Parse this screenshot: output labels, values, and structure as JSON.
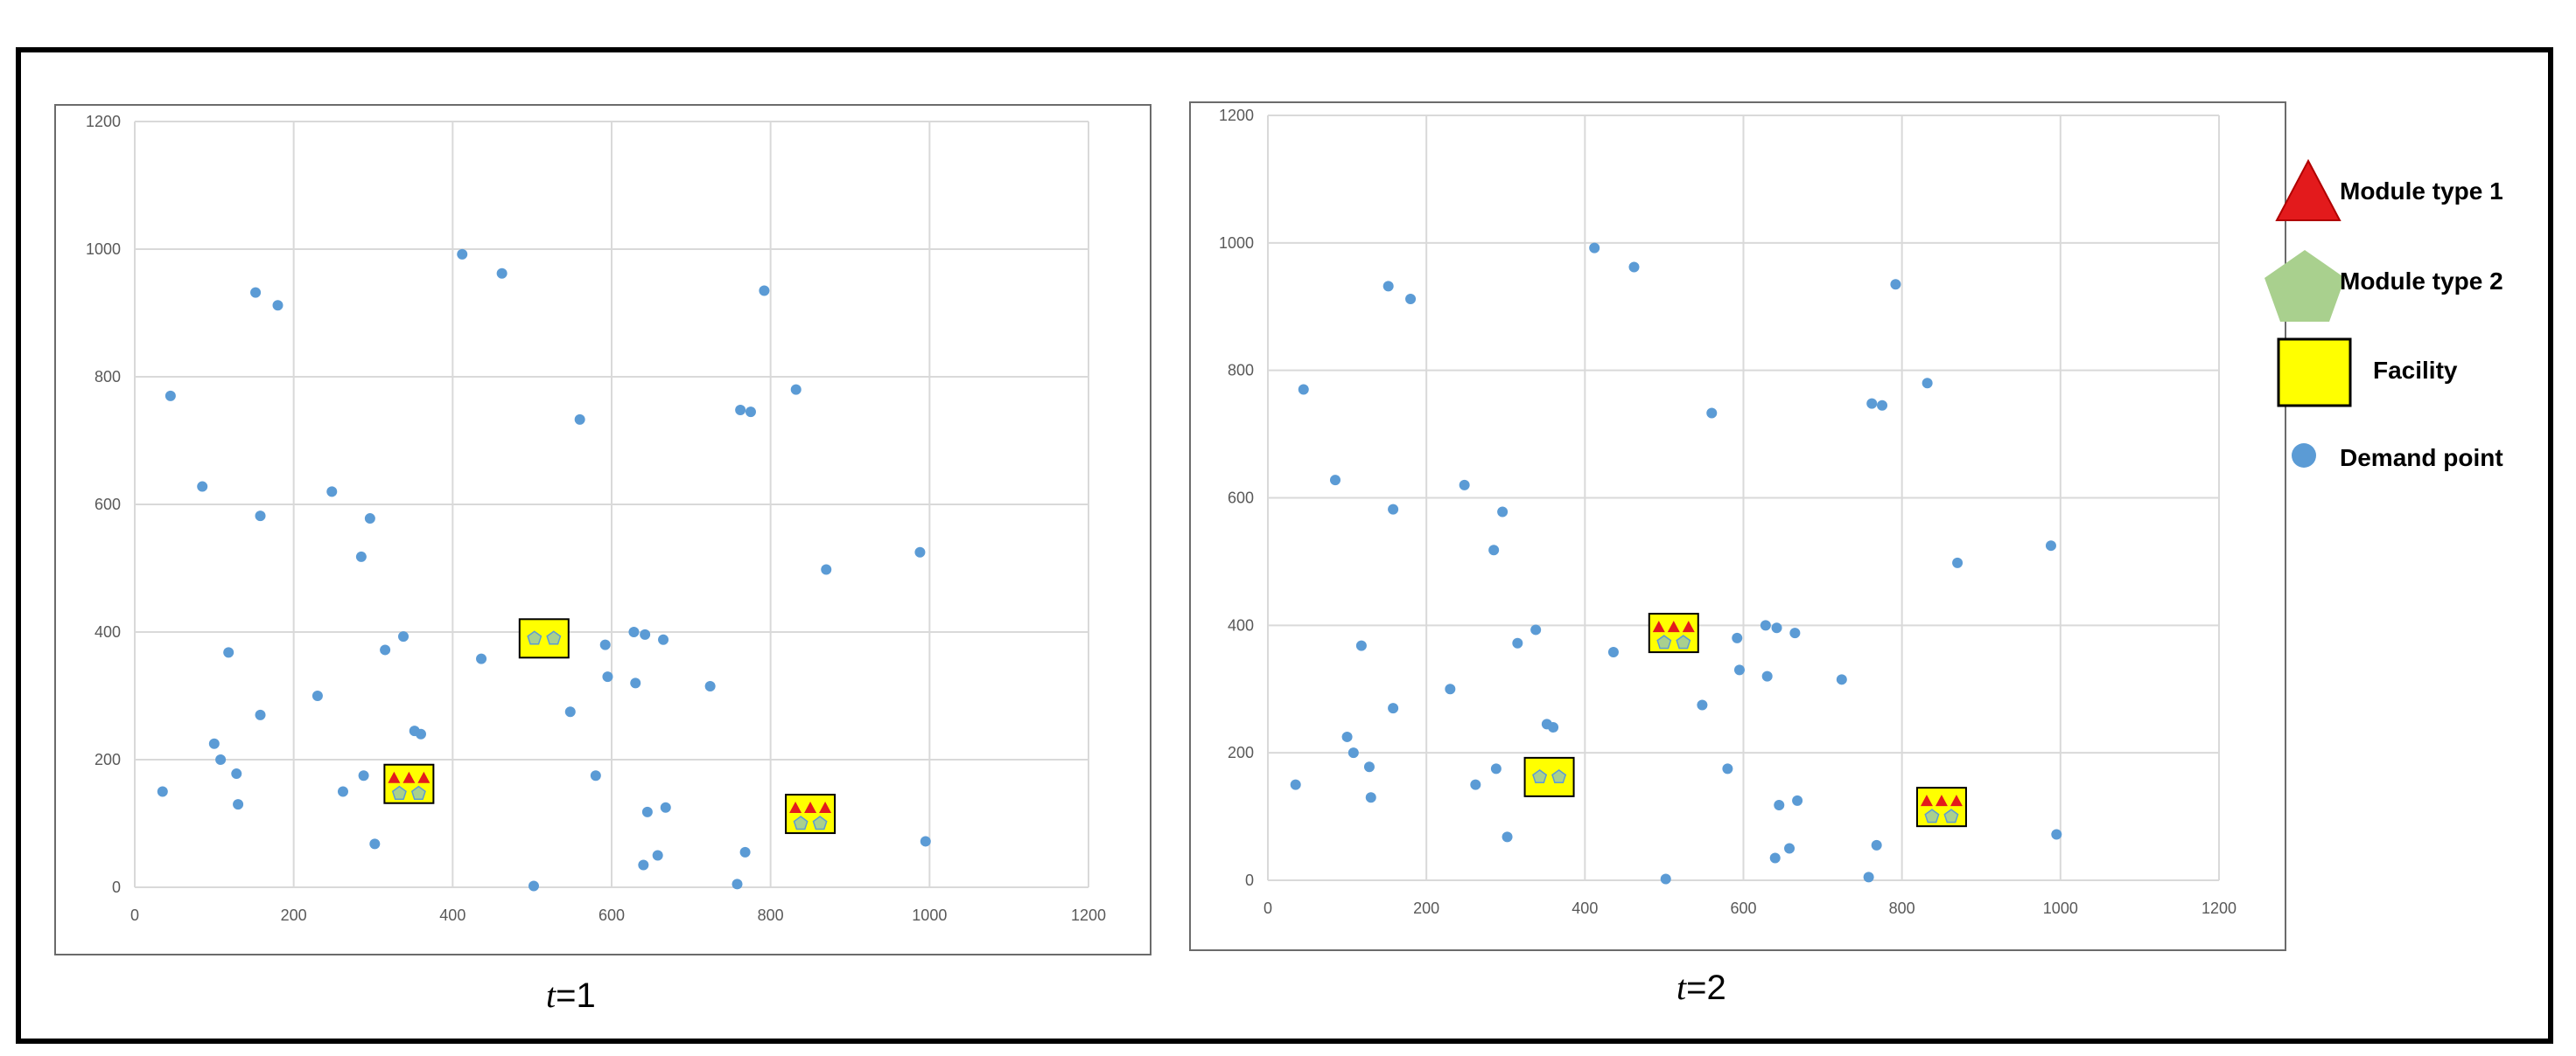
{
  "colors": {
    "demand_point": "#5b9bd5",
    "module_type_1": "#e31a1c",
    "module_type_2": "#a9d08e",
    "facility": "#ffff00",
    "grid": "#d9d9d9"
  },
  "captions": {
    "panel_1_var": "t",
    "panel_1_rest": "=1",
    "panel_2_var": "t",
    "panel_2_rest": "=2"
  },
  "legend": {
    "module_type_1": "Module type 1",
    "module_type_2": "Module type 2",
    "facility": "Facility",
    "demand_point": "Demand point"
  },
  "chart_data": [
    {
      "type": "scatter",
      "label": "t=1",
      "xlim": [
        0,
        1200
      ],
      "ylim": [
        0,
        1200
      ],
      "xticks": [
        0,
        200,
        400,
        600,
        800,
        1000,
        1200
      ],
      "yticks": [
        0,
        200,
        400,
        600,
        800,
        1000,
        1200
      ],
      "grid": true,
      "series": [
        {
          "name": "Demand point",
          "points": [
            [
              35,
              150
            ],
            [
              45,
              770
            ],
            [
              85,
              628
            ],
            [
              100,
              225
            ],
            [
              108,
              200
            ],
            [
              118,
              368
            ],
            [
              128,
              178
            ],
            [
              130,
              130
            ],
            [
              152,
              932
            ],
            [
              158,
              582
            ],
            [
              158,
              270
            ],
            [
              180,
              912
            ],
            [
              230,
              300
            ],
            [
              248,
              620
            ],
            [
              262,
              150
            ],
            [
              285,
              518
            ],
            [
              288,
              175
            ],
            [
              296,
              578
            ],
            [
              302,
              68
            ],
            [
              315,
              372
            ],
            [
              338,
              393
            ],
            [
              352,
              245
            ],
            [
              360,
              240
            ],
            [
              412,
              992
            ],
            [
              436,
              358
            ],
            [
              462,
              962
            ],
            [
              502,
              2
            ],
            [
              548,
              275
            ],
            [
              560,
              733
            ],
            [
              580,
              175
            ],
            [
              592,
              380
            ],
            [
              595,
              330
            ],
            [
              628,
              400
            ],
            [
              630,
              320
            ],
            [
              640,
              35
            ],
            [
              642,
              396
            ],
            [
              645,
              118
            ],
            [
              658,
              50
            ],
            [
              665,
              388
            ],
            [
              668,
              125
            ],
            [
              724,
              315
            ],
            [
              758,
              5
            ],
            [
              762,
              748
            ],
            [
              768,
              55
            ],
            [
              775,
              745
            ],
            [
              792,
              935
            ],
            [
              832,
              780
            ],
            [
              870,
              498
            ],
            [
              988,
              525
            ],
            [
              995,
              72
            ]
          ]
        }
      ],
      "facilities": [
        {
          "x": 345,
          "y": 162,
          "module_type_1": 3,
          "module_type_2": 2
        },
        {
          "x": 515,
          "y": 390,
          "module_type_1": 0,
          "module_type_2": 2
        },
        {
          "x": 850,
          "y": 115,
          "module_type_1": 3,
          "module_type_2": 2
        }
      ]
    },
    {
      "type": "scatter",
      "label": "t=2",
      "xlim": [
        0,
        1200
      ],
      "ylim": [
        0,
        1200
      ],
      "xticks": [
        0,
        200,
        400,
        600,
        800,
        1000,
        1200
      ],
      "yticks": [
        0,
        200,
        400,
        600,
        800,
        1000,
        1200
      ],
      "grid": true,
      "series": [
        {
          "name": "Demand point",
          "points": [
            [
              35,
              150
            ],
            [
              45,
              770
            ],
            [
              85,
              628
            ],
            [
              100,
              225
            ],
            [
              108,
              200
            ],
            [
              118,
              368
            ],
            [
              128,
              178
            ],
            [
              130,
              130
            ],
            [
              152,
              932
            ],
            [
              158,
              582
            ],
            [
              158,
              270
            ],
            [
              180,
              912
            ],
            [
              230,
              300
            ],
            [
              248,
              620
            ],
            [
              262,
              150
            ],
            [
              285,
              518
            ],
            [
              288,
              175
            ],
            [
              296,
              578
            ],
            [
              302,
              68
            ],
            [
              315,
              372
            ],
            [
              338,
              393
            ],
            [
              352,
              245
            ],
            [
              360,
              240
            ],
            [
              412,
              992
            ],
            [
              436,
              358
            ],
            [
              462,
              962
            ],
            [
              502,
              2
            ],
            [
              548,
              275
            ],
            [
              560,
              733
            ],
            [
              580,
              175
            ],
            [
              592,
              380
            ],
            [
              595,
              330
            ],
            [
              628,
              400
            ],
            [
              630,
              320
            ],
            [
              640,
              35
            ],
            [
              642,
              396
            ],
            [
              645,
              118
            ],
            [
              658,
              50
            ],
            [
              665,
              388
            ],
            [
              668,
              125
            ],
            [
              724,
              315
            ],
            [
              758,
              5
            ],
            [
              762,
              748
            ],
            [
              768,
              55
            ],
            [
              775,
              745
            ],
            [
              792,
              935
            ],
            [
              832,
              780
            ],
            [
              870,
              498
            ],
            [
              988,
              525
            ],
            [
              995,
              72
            ]
          ]
        }
      ],
      "facilities": [
        {
          "x": 355,
          "y": 162,
          "module_type_1": 0,
          "module_type_2": 2
        },
        {
          "x": 512,
          "y": 388,
          "module_type_1": 3,
          "module_type_2": 2
        },
        {
          "x": 850,
          "y": 115,
          "module_type_1": 3,
          "module_type_2": 2
        }
      ]
    }
  ]
}
